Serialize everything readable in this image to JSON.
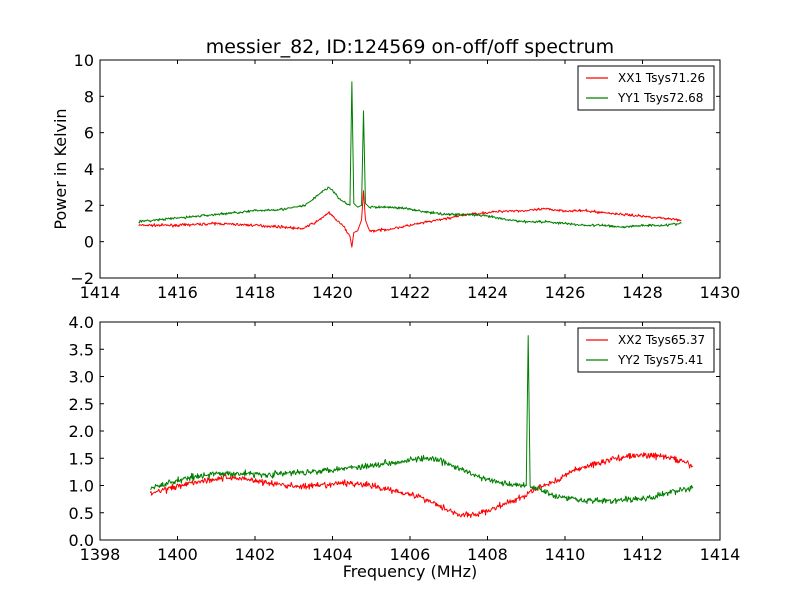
{
  "chart_data": [
    {
      "type": "line",
      "title": "messier_82, ID:124569 on-off/off spectrum",
      "xlabel": "",
      "ylabel": "Power in Kelvin",
      "xlim": [
        1414,
        1430
      ],
      "ylim": [
        -2,
        10
      ],
      "xticks": [
        "1414",
        "1416",
        "1418",
        "1420",
        "1422",
        "1424",
        "1426",
        "1428",
        "1430"
      ],
      "yticks": [
        "−2",
        "0",
        "2",
        "4",
        "6",
        "8",
        "10"
      ],
      "legend_position": "upper right",
      "series": [
        {
          "name": "XX1 Tsys71.26",
          "color": "#ff0000",
          "x": [
            1415,
            1416,
            1417,
            1418,
            1418.8,
            1419.2,
            1419.6,
            1419.9,
            1420.1,
            1420.3,
            1420.45,
            1420.5,
            1420.55,
            1420.65,
            1420.75,
            1420.8,
            1420.85,
            1420.95,
            1421.1,
            1421.5,
            1422,
            1422.5,
            1423,
            1423.5,
            1424,
            1424.5,
            1425,
            1425.5,
            1426,
            1426.5,
            1427,
            1427.5,
            1428,
            1428.5,
            1429
          ],
          "y": [
            0.9,
            0.9,
            1.0,
            0.9,
            0.8,
            0.7,
            1.1,
            1.6,
            1.2,
            0.8,
            0.3,
            -0.3,
            0.5,
            0.6,
            1.2,
            2.8,
            1.2,
            0.6,
            0.6,
            0.7,
            0.9,
            1.1,
            1.3,
            1.5,
            1.6,
            1.7,
            1.7,
            1.8,
            1.7,
            1.7,
            1.6,
            1.5,
            1.4,
            1.3,
            1.2
          ]
        },
        {
          "name": "YY1 Tsys72.68",
          "color": "#008000",
          "x": [
            1415,
            1416,
            1417,
            1418,
            1418.8,
            1419.3,
            1419.7,
            1419.9,
            1420.0,
            1420.2,
            1420.45,
            1420.5,
            1420.55,
            1420.65,
            1420.75,
            1420.8,
            1420.85,
            1420.95,
            1421.1,
            1421.5,
            1422,
            1422.5,
            1423,
            1423.5,
            1424,
            1424.5,
            1425,
            1425.5,
            1426,
            1426.5,
            1427,
            1427.5,
            1428,
            1428.5,
            1429
          ],
          "y": [
            1.1,
            1.3,
            1.5,
            1.7,
            1.8,
            2.0,
            2.7,
            3.0,
            2.8,
            2.3,
            2.0,
            8.8,
            2.1,
            1.9,
            2.0,
            7.2,
            2.1,
            1.9,
            1.9,
            1.9,
            1.8,
            1.6,
            1.5,
            1.5,
            1.4,
            1.2,
            1.1,
            1.1,
            1.0,
            0.9,
            0.9,
            0.8,
            0.9,
            0.9,
            1.0
          ]
        }
      ]
    },
    {
      "type": "line",
      "title": "",
      "xlabel": "Frequency (MHz)",
      "ylabel": "",
      "xlim": [
        1398,
        1414
      ],
      "ylim": [
        0.0,
        4.0
      ],
      "xticks": [
        "1398",
        "1400",
        "1402",
        "1404",
        "1406",
        "1408",
        "1410",
        "1412",
        "1414"
      ],
      "yticks": [
        "0.0",
        "0.5",
        "1.0",
        "1.5",
        "2.0",
        "2.5",
        "3.0",
        "3.5",
        "4.0"
      ],
      "legend_position": "upper right",
      "series": [
        {
          "name": "XX2 Tsys65.37",
          "color": "#ff0000",
          "x": [
            1399.3,
            1399.8,
            1400.3,
            1400.8,
            1401.3,
            1401.8,
            1402.3,
            1402.8,
            1403.3,
            1403.8,
            1404.3,
            1404.8,
            1405.3,
            1405.8,
            1406.3,
            1406.8,
            1407.3,
            1407.8,
            1408.3,
            1408.8,
            1409.3,
            1409.8,
            1410.3,
            1410.8,
            1411.3,
            1411.8,
            1412.3,
            1412.8,
            1413.3
          ],
          "y": [
            0.85,
            0.95,
            1.05,
            1.1,
            1.15,
            1.12,
            1.05,
            1.0,
            0.98,
            1.0,
            1.05,
            1.02,
            0.95,
            0.88,
            0.78,
            0.62,
            0.45,
            0.48,
            0.62,
            0.75,
            0.95,
            1.1,
            1.3,
            1.4,
            1.5,
            1.55,
            1.55,
            1.5,
            1.35
          ]
        },
        {
          "name": "YY2 Tsys75.41",
          "color": "#008000",
          "x": [
            1399.3,
            1399.8,
            1400.3,
            1400.8,
            1401.3,
            1401.8,
            1402.3,
            1402.8,
            1403.3,
            1403.8,
            1404.3,
            1404.8,
            1405.3,
            1405.8,
            1406.3,
            1406.8,
            1407.3,
            1407.8,
            1408.3,
            1408.8,
            1409.0,
            1409.05,
            1409.1,
            1409.3,
            1409.8,
            1410.3,
            1410.8,
            1411.3,
            1411.8,
            1412.3,
            1412.8,
            1413.3
          ],
          "y": [
            0.95,
            1.05,
            1.15,
            1.2,
            1.22,
            1.22,
            1.2,
            1.22,
            1.25,
            1.28,
            1.32,
            1.35,
            1.4,
            1.45,
            1.5,
            1.45,
            1.3,
            1.15,
            1.05,
            1.0,
            1.0,
            3.75,
            1.0,
            0.95,
            0.8,
            0.75,
            0.72,
            0.72,
            0.75,
            0.78,
            0.9,
            0.95
          ]
        }
      ]
    }
  ]
}
